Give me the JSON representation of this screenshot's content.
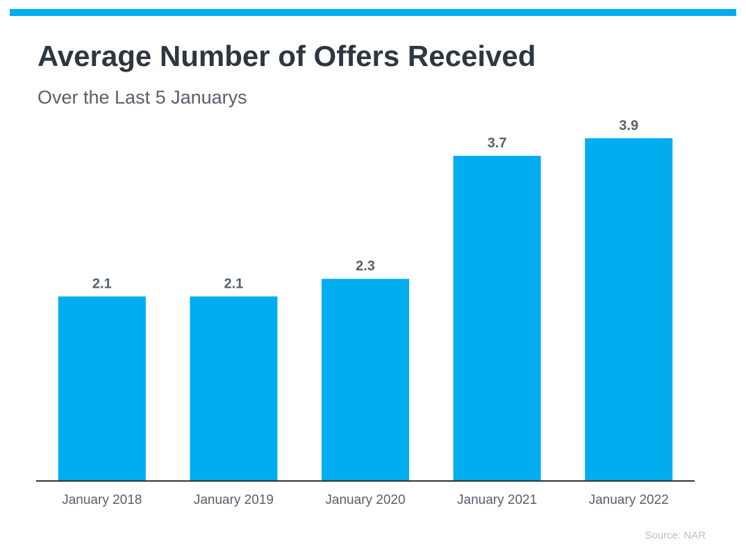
{
  "colors": {
    "accent": "#00adef",
    "bar": "#00adef",
    "title": "#2e3640",
    "subtitle": "#56606b",
    "label": "#56606b",
    "axis": "#333333",
    "source": "#b9bfc6"
  },
  "chart_data": {
    "type": "bar",
    "title": "Average Number of Offers Received",
    "subtitle": "Over the Last 5 Januarys",
    "categories": [
      "January 2018",
      "January 2019",
      "January 2020",
      "January 2021",
      "January 2022"
    ],
    "values": [
      2.1,
      2.1,
      2.3,
      3.7,
      3.9
    ],
    "data_labels": [
      "2.1",
      "2.1",
      "2.3",
      "3.7",
      "3.9"
    ],
    "ylim": [
      0,
      4.2
    ],
    "grid": false,
    "legend": "none",
    "source": "Source: NAR"
  }
}
